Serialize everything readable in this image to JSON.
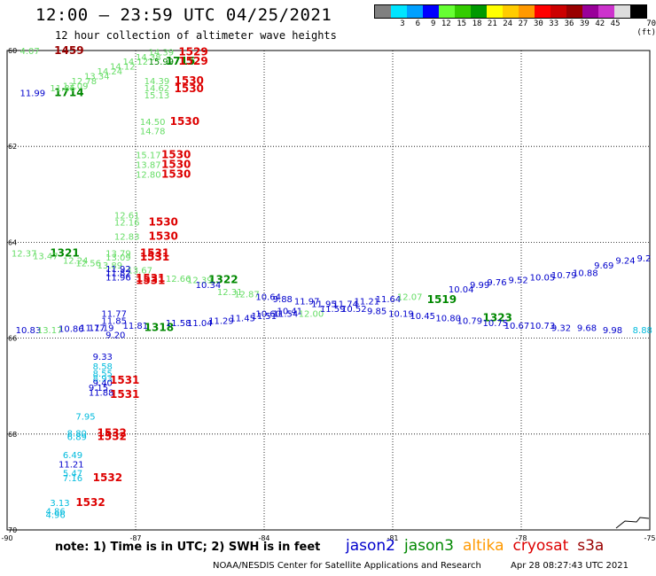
{
  "header": {
    "title": "12:00 – 23:59 UTC 04/25/2021",
    "subtitle": "12 hour collection of altimeter wave heights"
  },
  "colorbar": {
    "colors": [
      "#808080",
      "#00e5ff",
      "#00a0ff",
      "#0000ff",
      "#66ff33",
      "#33cc00",
      "#009900",
      "#ffff00",
      "#ffcc00",
      "#ff9900",
      "#ff0000",
      "#cc0000",
      "#990000",
      "#990099",
      "#cc33cc",
      "#dddddd",
      "#000000"
    ],
    "labels": [
      "",
      "3",
      "6",
      "9",
      "12",
      "15",
      "18",
      "21",
      "24",
      "27",
      "30",
      "33",
      "36",
      "39",
      "42",
      "45",
      "70 (ft)"
    ]
  },
  "note": "note:  1) Time is in UTC;  2) SWH is in feet",
  "legend": [
    {
      "name": "jason2",
      "color": "#0000cc"
    },
    {
      "name": "jason3",
      "color": "#008800"
    },
    {
      "name": "altika",
      "color": "#ff9900"
    },
    {
      "name": "cryosat",
      "color": "#dd0000"
    },
    {
      "name": "s3a",
      "color": "#990000"
    }
  ],
  "footer": {
    "credit": "NOAA/NESDIS Center for Satellite Applications and Research",
    "timestamp": "Apr 28 08:27:43 UTC 2021"
  },
  "chart_data": {
    "type": "scatter",
    "xlim": [
      -90,
      -75
    ],
    "ylim": [
      60,
      70
    ],
    "y_inverted": true,
    "grid": true,
    "x_ticks": [
      "-90",
      "-87",
      "-84",
      "-81",
      "-78",
      "-75"
    ],
    "y_ticks": [
      "60",
      "62",
      "64",
      "66",
      "68",
      "70"
    ],
    "colors": {
      "cyan": "#00bbdd",
      "blue": "#0000cc",
      "lightgreen": "#66dd66",
      "green": "#008800",
      "red": "#dd0000",
      "darkred": "#990000"
    },
    "marks": [
      {
        "x": -89.7,
        "y": 60.07,
        "t": "4.07",
        "c": "lightgreen"
      },
      {
        "x": -88.9,
        "y": 60.07,
        "t": "1459",
        "c": "darkred",
        "time": true
      },
      {
        "x": -89.7,
        "y": 60.95,
        "t": "11.99",
        "c": "blue"
      },
      {
        "x": -88.9,
        "y": 60.95,
        "t": "1714",
        "c": "green",
        "time": true
      },
      {
        "x": -89.0,
        "y": 60.85,
        "t": "11.86",
        "c": "lightgreen"
      },
      {
        "x": -88.7,
        "y": 60.8,
        "t": "13.09",
        "c": "lightgreen"
      },
      {
        "x": -88.5,
        "y": 60.7,
        "t": "12.78",
        "c": "lightgreen"
      },
      {
        "x": -88.2,
        "y": 60.6,
        "t": "13.34",
        "c": "lightgreen"
      },
      {
        "x": -87.9,
        "y": 60.5,
        "t": "14.24",
        "c": "lightgreen"
      },
      {
        "x": -87.6,
        "y": 60.4,
        "t": "14.12",
        "c": "lightgreen"
      },
      {
        "x": -87.3,
        "y": 60.3,
        "t": "14.12",
        "c": "lightgreen"
      },
      {
        "x": -87.0,
        "y": 60.2,
        "t": "14.38",
        "c": "lightgreen"
      },
      {
        "x": -86.7,
        "y": 60.1,
        "t": "14.39",
        "c": "lightgreen"
      },
      {
        "x": -86.7,
        "y": 60.3,
        "t": "15.99",
        "c": "green"
      },
      {
        "x": -86.3,
        "y": 60.3,
        "t": "1715",
        "c": "green",
        "time": true
      },
      {
        "x": -86.0,
        "y": 60.1,
        "t": "1529",
        "c": "red",
        "time": true
      },
      {
        "x": -86.0,
        "y": 60.3,
        "t": "1529",
        "c": "red",
        "time": true
      },
      {
        "x": -86.8,
        "y": 60.7,
        "t": "14.39",
        "c": "lightgreen"
      },
      {
        "x": -86.8,
        "y": 60.85,
        "t": "14.62",
        "c": "lightgreen"
      },
      {
        "x": -86.8,
        "y": 61.0,
        "t": "15.13",
        "c": "lightgreen"
      },
      {
        "x": -86.1,
        "y": 60.7,
        "t": "1530",
        "c": "red",
        "time": true
      },
      {
        "x": -86.1,
        "y": 60.87,
        "t": "1530",
        "c": "red",
        "time": true
      },
      {
        "x": -86.9,
        "y": 61.55,
        "t": "14.50",
        "c": "lightgreen"
      },
      {
        "x": -86.9,
        "y": 61.75,
        "t": "14.78",
        "c": "lightgreen"
      },
      {
        "x": -86.2,
        "y": 61.55,
        "t": "1530",
        "c": "red",
        "time": true
      },
      {
        "x": -87.0,
        "y": 62.25,
        "t": "15.17",
        "c": "lightgreen"
      },
      {
        "x": -87.0,
        "y": 62.45,
        "t": "13.87",
        "c": "lightgreen"
      },
      {
        "x": -87.0,
        "y": 62.65,
        "t": "12.80",
        "c": "lightgreen"
      },
      {
        "x": -86.4,
        "y": 62.25,
        "t": "1530",
        "c": "red",
        "time": true
      },
      {
        "x": -86.4,
        "y": 62.45,
        "t": "1530",
        "c": "red",
        "time": true
      },
      {
        "x": -86.4,
        "y": 62.65,
        "t": "1530",
        "c": "red",
        "time": true
      },
      {
        "x": -87.5,
        "y": 63.5,
        "t": "12.61",
        "c": "lightgreen"
      },
      {
        "x": -87.5,
        "y": 63.65,
        "t": "12.16",
        "c": "lightgreen"
      },
      {
        "x": -87.5,
        "y": 63.95,
        "t": "12.83",
        "c": "lightgreen"
      },
      {
        "x": -86.7,
        "y": 63.65,
        "t": "1530",
        "c": "red",
        "time": true
      },
      {
        "x": -86.7,
        "y": 63.95,
        "t": "1530",
        "c": "red",
        "time": true
      },
      {
        "x": -89.9,
        "y": 64.3,
        "t": "12.37",
        "c": "lightgreen"
      },
      {
        "x": -89.0,
        "y": 64.3,
        "t": "1321",
        "c": "green",
        "time": true
      },
      {
        "x": -89.4,
        "y": 64.35,
        "t": "13.47",
        "c": "lightgreen"
      },
      {
        "x": -88.7,
        "y": 64.45,
        "t": "12.24",
        "c": "lightgreen"
      },
      {
        "x": -88.4,
        "y": 64.5,
        "t": "12.56",
        "c": "lightgreen"
      },
      {
        "x": -87.7,
        "y": 64.3,
        "t": "13.79",
        "c": "lightgreen"
      },
      {
        "x": -87.7,
        "y": 64.38,
        "t": "13.09",
        "c": "lightgreen"
      },
      {
        "x": -86.9,
        "y": 64.3,
        "t": "1531",
        "c": "red",
        "time": true
      },
      {
        "x": -86.9,
        "y": 64.38,
        "t": "1531",
        "c": "red",
        "time": true
      },
      {
        "x": -87.9,
        "y": 64.55,
        "t": "13.89",
        "c": "lightgreen"
      },
      {
        "x": -87.2,
        "y": 64.65,
        "t": "13.67",
        "c": "lightgreen"
      },
      {
        "x": -87.7,
        "y": 64.62,
        "t": "11.92",
        "c": "blue"
      },
      {
        "x": -87.7,
        "y": 64.7,
        "t": "11.82",
        "c": "blue"
      },
      {
        "x": -87.7,
        "y": 64.8,
        "t": "11.96",
        "c": "blue"
      },
      {
        "x": -87.0,
        "y": 64.82,
        "t": "1531",
        "c": "red",
        "time": true
      },
      {
        "x": -87.0,
        "y": 64.87,
        "t": "1531",
        "c": "red",
        "time": true
      },
      {
        "x": -86.3,
        "y": 64.82,
        "t": "12.66",
        "c": "lightgreen"
      },
      {
        "x": -85.8,
        "y": 64.85,
        "t": "12.39",
        "c": "lightgreen"
      },
      {
        "x": -85.3,
        "y": 64.85,
        "t": "1322",
        "c": "green",
        "time": true
      },
      {
        "x": -85.6,
        "y": 64.95,
        "t": "10.34",
        "c": "blue"
      },
      {
        "x": -85.1,
        "y": 65.1,
        "t": "12.31",
        "c": "lightgreen"
      },
      {
        "x": -84.7,
        "y": 65.15,
        "t": "12.87",
        "c": "lightgreen"
      },
      {
        "x": -84.2,
        "y": 65.2,
        "t": "10.64",
        "c": "blue"
      },
      {
        "x": -83.8,
        "y": 65.25,
        "t": "9.88",
        "c": "blue"
      },
      {
        "x": -83.3,
        "y": 65.3,
        "t": "11.97",
        "c": "blue"
      },
      {
        "x": -82.9,
        "y": 65.35,
        "t": "11.95",
        "c": "blue"
      },
      {
        "x": -82.4,
        "y": 65.35,
        "t": "11.74",
        "c": "blue"
      },
      {
        "x": -81.9,
        "y": 65.3,
        "t": "11.21",
        "c": "blue"
      },
      {
        "x": -81.4,
        "y": 65.25,
        "t": "11.64",
        "c": "blue"
      },
      {
        "x": -80.9,
        "y": 65.2,
        "t": "12.07",
        "c": "lightgreen"
      },
      {
        "x": -80.2,
        "y": 65.27,
        "t": "1519",
        "c": "green",
        "time": true
      },
      {
        "x": -79.7,
        "y": 65.05,
        "t": "10.04",
        "c": "blue"
      },
      {
        "x": -79.2,
        "y": 64.95,
        "t": "9.99",
        "c": "blue"
      },
      {
        "x": -78.8,
        "y": 64.9,
        "t": "9.76",
        "c": "blue"
      },
      {
        "x": -78.3,
        "y": 64.85,
        "t": "9.52",
        "c": "blue"
      },
      {
        "x": -77.8,
        "y": 64.8,
        "t": "10.05",
        "c": "blue"
      },
      {
        "x": -77.3,
        "y": 64.75,
        "t": "10.79",
        "c": "blue"
      },
      {
        "x": -76.8,
        "y": 64.7,
        "t": "10.88",
        "c": "blue"
      },
      {
        "x": -76.3,
        "y": 64.55,
        "t": "9.69",
        "c": "blue"
      },
      {
        "x": -75.8,
        "y": 64.45,
        "t": "9.24",
        "c": "blue"
      },
      {
        "x": -75.3,
        "y": 64.4,
        "t": "9.2",
        "c": "blue"
      },
      {
        "x": -84.2,
        "y": 65.55,
        "t": "10.60",
        "c": "blue"
      },
      {
        "x": -83.7,
        "y": 65.5,
        "t": "10.41",
        "c": "blue"
      },
      {
        "x": -83.2,
        "y": 65.55,
        "t": "12.00",
        "c": "lightgreen"
      },
      {
        "x": -82.7,
        "y": 65.45,
        "t": "11.59",
        "c": "blue"
      },
      {
        "x": -82.2,
        "y": 65.45,
        "t": "10.52",
        "c": "blue"
      },
      {
        "x": -81.6,
        "y": 65.5,
        "t": "9.85",
        "c": "blue"
      },
      {
        "x": -81.1,
        "y": 65.55,
        "t": "10.19",
        "c": "blue"
      },
      {
        "x": -80.6,
        "y": 65.6,
        "t": "10.45",
        "c": "blue"
      },
      {
        "x": -80.0,
        "y": 65.65,
        "t": "10.80",
        "c": "blue"
      },
      {
        "x": -79.5,
        "y": 65.7,
        "t": "10.79",
        "c": "blue"
      },
      {
        "x": -78.9,
        "y": 65.65,
        "t": "1323",
        "c": "green",
        "time": true
      },
      {
        "x": -78.9,
        "y": 65.75,
        "t": "10.75",
        "c": "blue"
      },
      {
        "x": -78.4,
        "y": 65.8,
        "t": "10.67",
        "c": "blue"
      },
      {
        "x": -77.8,
        "y": 65.8,
        "t": "10.73",
        "c": "blue"
      },
      {
        "x": -77.3,
        "y": 65.85,
        "t": "9.32",
        "c": "blue"
      },
      {
        "x": -76.7,
        "y": 65.85,
        "t": "9.68",
        "c": "blue"
      },
      {
        "x": -76.1,
        "y": 65.9,
        "t": "9.98",
        "c": "blue"
      },
      {
        "x": -75.4,
        "y": 65.9,
        "t": "8.88",
        "c": "cyan"
      },
      {
        "x": -89.8,
        "y": 65.9,
        "t": "10.83",
        "c": "blue"
      },
      {
        "x": -89.3,
        "y": 65.9,
        "t": "13.17",
        "c": "lightgreen"
      },
      {
        "x": -88.8,
        "y": 65.87,
        "t": "10.86",
        "c": "blue"
      },
      {
        "x": -88.3,
        "y": 65.85,
        "t": "11.77",
        "c": "blue"
      },
      {
        "x": -87.8,
        "y": 65.55,
        "t": "11.77",
        "c": "blue"
      },
      {
        "x": -87.8,
        "y": 65.7,
        "t": "11.85",
        "c": "blue"
      },
      {
        "x": -88.1,
        "y": 65.85,
        "t": "11.19",
        "c": "blue"
      },
      {
        "x": -87.3,
        "y": 65.8,
        "t": "11.81",
        "c": "blue"
      },
      {
        "x": -87.7,
        "y": 66.0,
        "t": "9.20",
        "c": "blue"
      },
      {
        "x": -86.8,
        "y": 65.85,
        "t": "1318",
        "c": "green",
        "time": true
      },
      {
        "x": -86.3,
        "y": 65.75,
        "t": "11.58",
        "c": "blue"
      },
      {
        "x": -85.8,
        "y": 65.75,
        "t": "11.04",
        "c": "blue"
      },
      {
        "x": -85.3,
        "y": 65.7,
        "t": "11.29",
        "c": "blue"
      },
      {
        "x": -84.8,
        "y": 65.65,
        "t": "11.45",
        "c": "blue"
      },
      {
        "x": -84.3,
        "y": 65.6,
        "t": "11.51",
        "c": "blue"
      },
      {
        "x": -83.8,
        "y": 65.55,
        "t": "11.54",
        "c": "blue"
      },
      {
        "x": -88.0,
        "y": 66.45,
        "t": "9.33",
        "c": "blue"
      },
      {
        "x": -88.0,
        "y": 66.65,
        "t": "8.58",
        "c": "cyan"
      },
      {
        "x": -88.0,
        "y": 66.8,
        "t": "8.55",
        "c": "cyan"
      },
      {
        "x": -88.0,
        "y": 66.9,
        "t": "8.93",
        "c": "cyan"
      },
      {
        "x": -88.0,
        "y": 67.0,
        "t": "9.40",
        "c": "blue"
      },
      {
        "x": -88.1,
        "y": 67.1,
        "t": "9.15",
        "c": "blue"
      },
      {
        "x": -88.1,
        "y": 67.2,
        "t": "11.88",
        "c": "blue"
      },
      {
        "x": -87.6,
        "y": 66.95,
        "t": "1531",
        "c": "red",
        "time": true
      },
      {
        "x": -87.6,
        "y": 67.25,
        "t": "1531",
        "c": "red",
        "time": true
      },
      {
        "x": -88.4,
        "y": 67.7,
        "t": "7.95",
        "c": "cyan"
      },
      {
        "x": -88.6,
        "y": 68.05,
        "t": "8.80",
        "c": "cyan"
      },
      {
        "x": -88.6,
        "y": 68.12,
        "t": "6.89",
        "c": "cyan"
      },
      {
        "x": -87.9,
        "y": 68.05,
        "t": "1532",
        "c": "red",
        "time": true
      },
      {
        "x": -87.9,
        "y": 68.12,
        "t": "1532",
        "c": "red",
        "time": true
      },
      {
        "x": -88.7,
        "y": 68.5,
        "t": "6.49",
        "c": "cyan"
      },
      {
        "x": -88.8,
        "y": 68.7,
        "t": "11.21",
        "c": "blue"
      },
      {
        "x": -88.7,
        "y": 68.88,
        "t": "5.47",
        "c": "cyan"
      },
      {
        "x": -88.7,
        "y": 68.98,
        "t": "7.16",
        "c": "cyan"
      },
      {
        "x": -88.0,
        "y": 68.98,
        "t": "1532",
        "c": "red",
        "time": true
      },
      {
        "x": -89.0,
        "y": 69.5,
        "t": "3.13",
        "c": "cyan"
      },
      {
        "x": -89.1,
        "y": 69.68,
        "t": "4.86",
        "c": "cyan"
      },
      {
        "x": -89.1,
        "y": 69.75,
        "t": "4.96",
        "c": "cyan"
      },
      {
        "x": -88.4,
        "y": 69.5,
        "t": "1532",
        "c": "red",
        "time": true
      }
    ]
  }
}
